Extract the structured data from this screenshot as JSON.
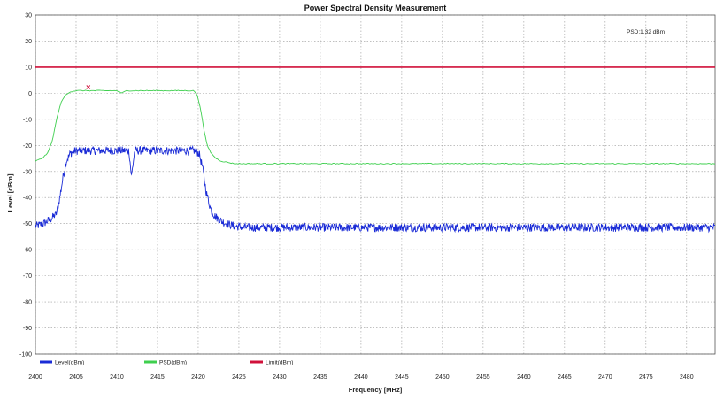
{
  "chart_data": {
    "type": "line",
    "title": "Power Spectral Density Measurement",
    "xlabel": "Frequency [MHz]",
    "ylabel": "Level [dBm]",
    "xlim": [
      2400,
      2483.5
    ],
    "ylim": [
      -100,
      30
    ],
    "x_ticks": [
      2400,
      2405,
      2410,
      2415,
      2420,
      2425,
      2430,
      2435,
      2440,
      2445,
      2450,
      2455,
      2460,
      2465,
      2470,
      2475,
      2480
    ],
    "y_ticks": [
      30,
      20,
      10,
      0,
      -10,
      -20,
      -30,
      -40,
      -50,
      -60,
      -70,
      -80,
      -90,
      -100
    ],
    "grid": true,
    "legend_position": "bottom-left",
    "annotation": "PSD:1.32 dBm",
    "marker": {
      "x": 2406.5,
      "y": 1.32
    },
    "series": [
      {
        "name": "Level(dBm)",
        "color": "#1a2bd6",
        "style": "noisy",
        "x": [
          2400,
          2401,
          2402,
          2402.6,
          2403,
          2403.4,
          2403.8,
          2404.3,
          2405,
          2410,
          2411.5,
          2411.8,
          2412.2,
          2415,
          2419.5,
          2420.1,
          2420.5,
          2421,
          2421.5,
          2422,
          2422.8,
          2423.5,
          2424.5,
          2426,
          2430,
          2440,
          2450,
          2460,
          2470,
          2483.5
        ],
        "values": [
          -51,
          -50,
          -48,
          -46,
          -40,
          -32,
          -26,
          -23,
          -22,
          -22,
          -22,
          -32,
          -22,
          -22,
          -22,
          -23,
          -28,
          -38,
          -44,
          -47,
          -49,
          -50,
          -51,
          -51.5,
          -51.5,
          -51.5,
          -51.5,
          -51.5,
          -51.5,
          -51.5
        ]
      },
      {
        "name": "PSD(dBm)",
        "color": "#3ecf4e",
        "style": "smooth",
        "x": [
          2400,
          2400.8,
          2401.5,
          2402.1,
          2402.6,
          2403.1,
          2403.6,
          2404.2,
          2405,
          2410,
          2410.6,
          2411.2,
          2415,
          2419.5,
          2419.9,
          2420.3,
          2420.7,
          2421.1,
          2421.6,
          2422.2,
          2422.8,
          2423.6,
          2424.5,
          2426,
          2440,
          2460,
          2483.5
        ],
        "values": [
          -26,
          -25,
          -23,
          -18,
          -10,
          -4,
          -1,
          0.5,
          1,
          1,
          0,
          1,
          1,
          1,
          -1,
          -6,
          -14,
          -20,
          -23,
          -25,
          -26,
          -26.5,
          -27,
          -27,
          -27,
          -27,
          -27
        ]
      },
      {
        "name": "Limit(dBm)",
        "color": "#d0103a",
        "style": "flat",
        "x": [
          2400,
          2483.5
        ],
        "values": [
          10,
          10
        ]
      }
    ]
  }
}
